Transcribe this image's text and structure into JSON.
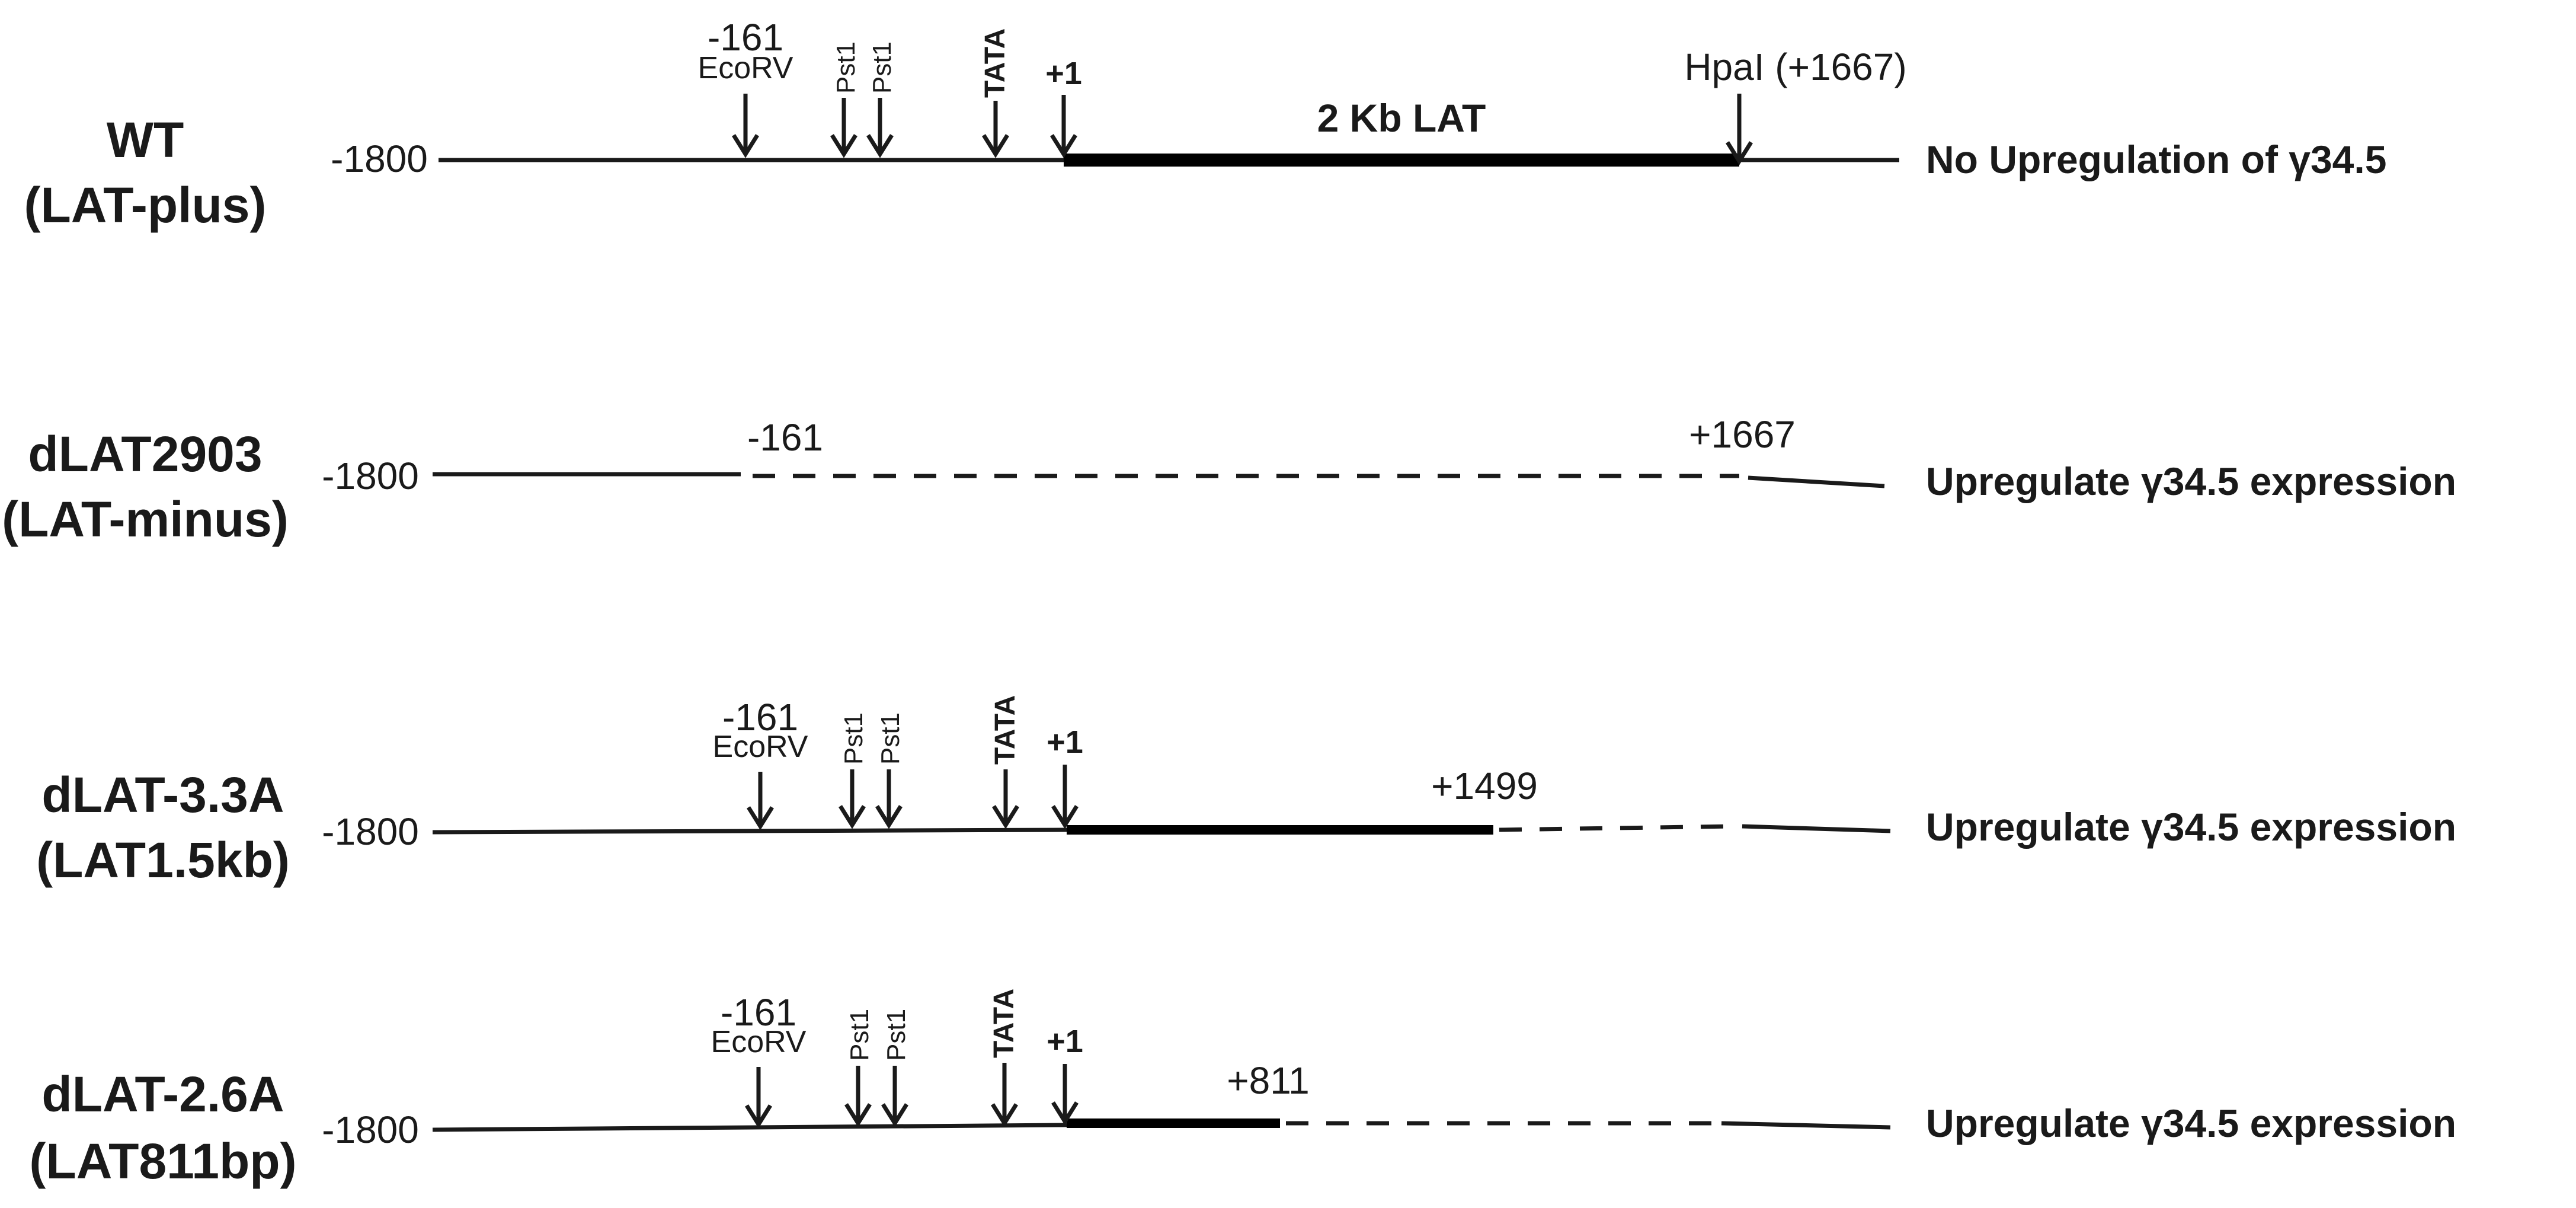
{
  "constructs": [
    {
      "name": "WT",
      "subname": "(LAT-plus)",
      "start_label": "-1800",
      "phenotype": "No Upregulation of γ34.5",
      "markers": [
        {
          "text": "-161",
          "sub": "EcoRV",
          "kind": "label-arrow"
        },
        {
          "text": "Pst1",
          "kind": "rot-arrow"
        },
        {
          "text": "Pst1",
          "kind": "rot-arrow"
        },
        {
          "text": "TATA",
          "kind": "rot-arrow-bold"
        },
        {
          "text": "+1",
          "kind": "label-arrow-bold"
        },
        {
          "text": "HpaI (+1667)",
          "kind": "label-arrow"
        }
      ],
      "transcript_label": "2 Kb LAT"
    },
    {
      "name": "dLAT2903",
      "subname": "(LAT-minus)",
      "start_label": "-1800",
      "phenotype": "Upregulate γ34.5 expression",
      "deletion_from": "-161",
      "deletion_to": "+1667"
    },
    {
      "name": "dLAT-3.3A",
      "subname": "(LAT1.5kb)",
      "start_label": "-1800",
      "phenotype": "Upregulate γ34.5 expression",
      "markers": [
        {
          "text": "-161",
          "sub": "EcoRV",
          "kind": "label-arrow"
        },
        {
          "text": "Pst1",
          "kind": "rot-arrow"
        },
        {
          "text": "Pst1",
          "kind": "rot-arrow"
        },
        {
          "text": "TATA",
          "kind": "rot-arrow-bold"
        },
        {
          "text": "+1",
          "kind": "label-arrow-bold"
        }
      ],
      "end_label": "+1499"
    },
    {
      "name": "dLAT-2.6A",
      "subname": "(LAT811bp)",
      "start_label": "-1800",
      "phenotype": "Upregulate γ34.5 expression",
      "markers": [
        {
          "text": "-161",
          "sub": "EcoRV",
          "kind": "label-arrow"
        },
        {
          "text": "Pst1",
          "kind": "rot-arrow"
        },
        {
          "text": "Pst1",
          "kind": "rot-arrow"
        },
        {
          "text": "TATA",
          "kind": "rot-arrow-bold"
        },
        {
          "text": "+1",
          "kind": "label-arrow-bold"
        }
      ],
      "end_label": "+811"
    }
  ]
}
